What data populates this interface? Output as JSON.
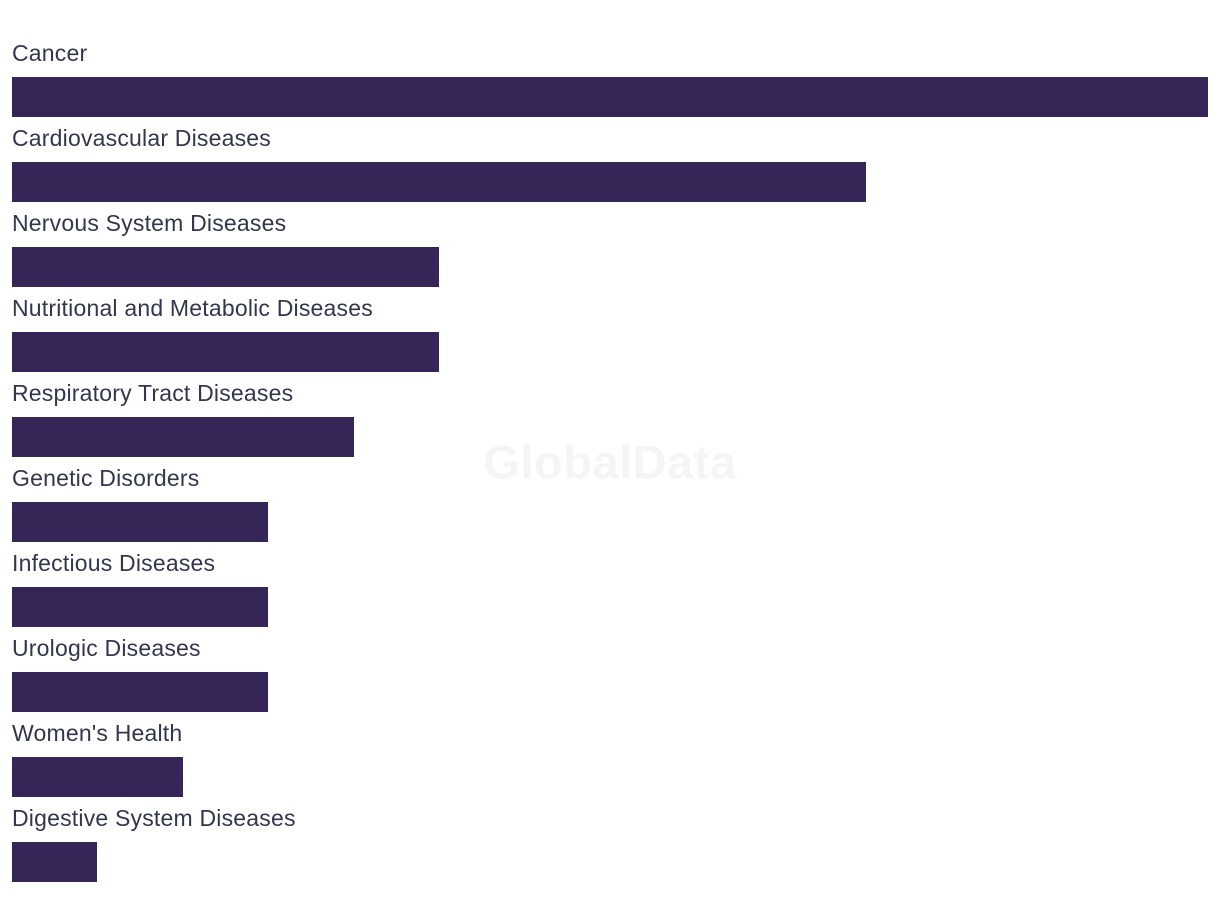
{
  "watermark": {
    "text": "GlobalData"
  },
  "colors": {
    "bar": "#352657",
    "label": "#33374E",
    "watermark": "#F5F5F5",
    "background": "#FFFFFF"
  },
  "chart_data": {
    "type": "bar",
    "orientation": "horizontal",
    "title": "",
    "xlabel": "",
    "ylabel": "",
    "categories": [
      "Cancer",
      "Cardiovascular Diseases",
      "Nervous System Diseases",
      "Nutritional and Metabolic Diseases",
      "Respiratory Tract Diseases",
      "Genetic Disorders",
      "Infectious Diseases",
      "Urologic Diseases",
      "Women's Health",
      "Digestive System Diseases"
    ],
    "values": [
      14,
      10,
      5,
      5,
      4,
      3,
      3,
      3,
      2,
      1
    ],
    "value_note": "No axis or data labels visible; values estimated from bar lengths (bars are exact integer multiples of one unit, max bar = full chart width)",
    "xlim": [
      0,
      14
    ],
    "grid": false,
    "legend": false,
    "label_position": "above-bar",
    "watermark": "GlobalData"
  }
}
